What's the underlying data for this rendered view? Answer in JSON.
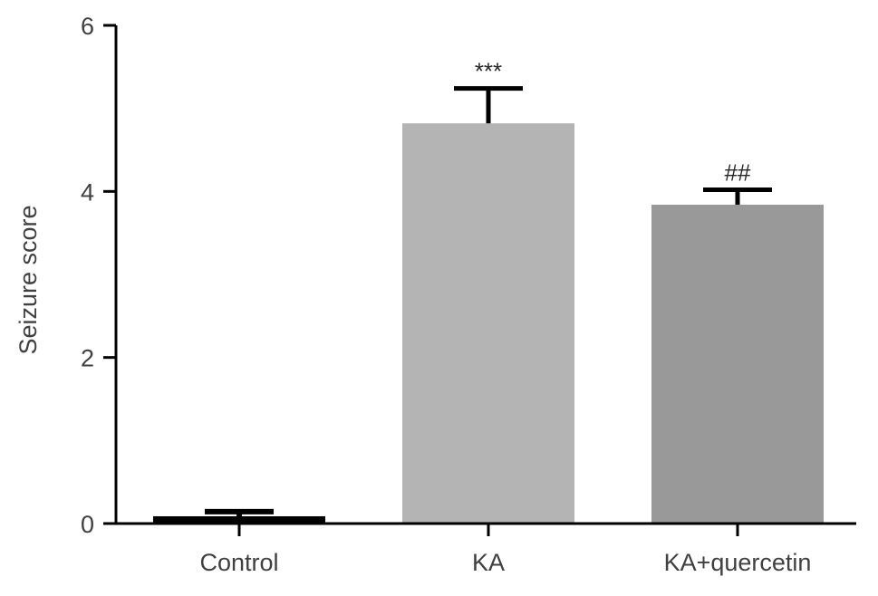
{
  "chart_data": {
    "type": "bar",
    "categories": [
      "Control",
      "KA",
      "KA+quercetin"
    ],
    "values": [
      0.08,
      4.82,
      3.84
    ],
    "error_bars": [
      0.03,
      0.42,
      0.18
    ],
    "annotations": [
      "",
      "***",
      "##"
    ],
    "bar_colors": [
      "#000000",
      "#b4b4b4",
      "#999999"
    ],
    "ylabel": "Seizure score",
    "xlabel": "",
    "ylim": [
      0,
      6
    ],
    "yticks": [
      0,
      2,
      4,
      6
    ],
    "grid": false
  }
}
